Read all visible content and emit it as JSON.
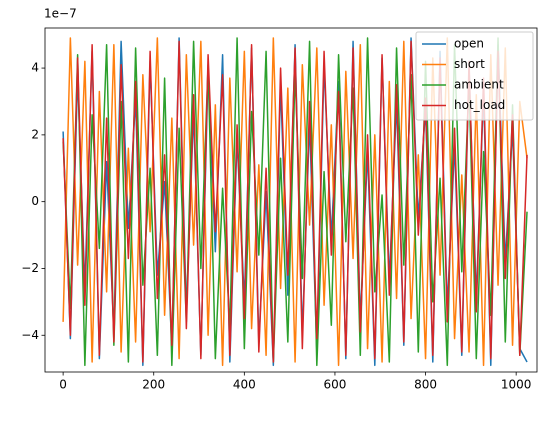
{
  "chart_data": {
    "type": "line",
    "offset_text": "1e−7",
    "x": [
      0,
      16,
      32,
      48,
      64,
      80,
      96,
      112,
      128,
      144,
      160,
      176,
      192,
      208,
      224,
      240,
      256,
      272,
      288,
      304,
      320,
      336,
      352,
      368,
      384,
      400,
      416,
      432,
      448,
      464,
      480,
      496,
      512,
      528,
      544,
      560,
      576,
      592,
      608,
      624,
      640,
      656,
      672,
      688,
      704,
      720,
      736,
      752,
      768,
      784,
      800,
      816,
      832,
      848,
      864,
      880,
      896,
      912,
      928,
      944,
      960,
      976,
      992,
      1008,
      1024
    ],
    "series": [
      {
        "name": "open",
        "color": "#1f77b4",
        "values": [
          2.1e-07,
          -4.1e-07,
          3.8e-07,
          -2.6e-07,
          4.5e-07,
          -4.7e-07,
          1.2e-07,
          -3.9e-07,
          4.8e-07,
          -8e-08,
          3.1e-07,
          -4.9e-07,
          4.2e-07,
          -2.2e-07,
          6e-08,
          -4.4e-07,
          4.9e-07,
          -3.3e-07,
          2.7e-07,
          -4.6e-07,
          3.9e-07,
          -1.5e-07,
          4.4e-07,
          -4.8e-07,
          1.9e-07,
          -3e-07,
          4.6e-07,
          -4.2e-07,
          3e-08,
          -4.9e-07,
          3.5e-07,
          -2.8e-07,
          4.7e-07,
          -4e-07,
          2.4e-07,
          -4.5e-07,
          4.1e-07,
          -1.1e-07,
          3.6e-07,
          -4.7e-07,
          4.8e-07,
          -3.6e-07,
          1.5e-07,
          -4.9e-07,
          4.3e-07,
          -2.4e-07,
          3e-07,
          -4.3e-07,
          4.9e-07,
          -5e-08,
          2.8e-07,
          -4.8e-07,
          4.5e-07,
          -3.2e-07,
          1.7e-07,
          -4.6e-07,
          4e-07,
          -2.9e-07,
          3.3e-07,
          -4.9e-07,
          4.7e-07,
          -1.8e-07,
          2.2e-07,
          -4.4e-07,
          -4.8e-07
        ]
      },
      {
        "name": "short",
        "color": "#ff7f0e",
        "values": [
          -3.6e-07,
          4.9e-07,
          -1.9e-07,
          4.2e-07,
          -4.8e-07,
          3.3e-07,
          -2.7e-07,
          4.7e-07,
          -4.5e-07,
          1.6e-07,
          -4.2e-07,
          3.8e-07,
          -9e-08,
          4.9e-07,
          -3.4e-07,
          2.5e-07,
          -4.7e-07,
          4.4e-07,
          -1.3e-07,
          4.8e-07,
          -4e-07,
          2.9e-07,
          -4.9e-07,
          3.7e-07,
          -2.1e-07,
          4.5e-07,
          -3.8e-07,
          1.1e-07,
          -4.6e-07,
          4.9e-07,
          -2.6e-07,
          3.4e-07,
          -4.8e-07,
          4.1e-07,
          -7e-08,
          4.6e-07,
          -3.1e-07,
          2.3e-07,
          -4.9e-07,
          3.9e-07,
          -1.7e-07,
          4.7e-07,
          -4.4e-07,
          2e-07,
          -4.8e-07,
          3.6e-07,
          -2.9e-07,
          4.8e-07,
          -3.5e-07,
          1.4e-07,
          -4.7e-07,
          4.3e-07,
          -2.2e-07,
          4.9e-07,
          -4.1e-07,
          8e-08,
          -4.5e-07,
          3.2e-07,
          -4.9e-07,
          4.4e-07,
          -2.5e-07,
          4.6e-07,
          -4.3e-07,
          3e-07,
          1.3e-07
        ]
      },
      {
        "name": "ambient",
        "color": "#2ca02c",
        "values": [
          1.8e-07,
          -3.2e-07,
          4.4e-07,
          -4.9e-07,
          2.6e-07,
          -1.4e-07,
          4.7e-07,
          -4.3e-07,
          3e-07,
          -4.8e-07,
          4.6e-07,
          -2.5e-07,
          1e-07,
          -4.6e-07,
          3.7e-07,
          -4.9e-07,
          2.2e-07,
          -3.6e-07,
          4.8e-07,
          -2e-07,
          4.1e-07,
          -4.7e-07,
          4e-08,
          -3.8e-07,
          4.9e-07,
          -4.4e-07,
          2.7e-07,
          -1.6e-07,
          4.5e-07,
          -4.8e-07,
          1.3e-07,
          -4.2e-07,
          3.9e-07,
          -2.3e-07,
          4.8e-07,
          -4.9e-07,
          9e-08,
          -3.7e-07,
          4.4e-07,
          -1.2e-07,
          3.4e-07,
          -4.6e-07,
          4.9e-07,
          -2.7e-07,
          2e-08,
          -4.8e-07,
          4.6e-07,
          -1.9e-07,
          3.8e-07,
          -4.5e-07,
          4.2e-07,
          -3e-07,
          7e-08,
          -4.9e-07,
          4.7e-07,
          -2.1e-07,
          3.6e-07,
          -4.7e-07,
          1.5e-07,
          -3.4e-07,
          4.9e-07,
          -4.2e-07,
          2.9e-07,
          -4.6e-07,
          -3e-08
        ]
      },
      {
        "name": "hot_load",
        "color": "#d62728",
        "values": [
          1.9e-07,
          -4e-07,
          4.3e-07,
          -3.1e-07,
          4.7e-07,
          -4.6e-07,
          2.5e-07,
          -4.2e-07,
          4.1e-07,
          -1.7e-07,
          3.6e-07,
          -4.8e-07,
          4.5e-07,
          -2.9e-07,
          1.4e-07,
          -4.3e-07,
          4.8e-07,
          -3.8e-07,
          3.2e-07,
          -4.7e-07,
          4.4e-07,
          -9e-08,
          3.8e-07,
          -4.6e-07,
          2.3e-07,
          -3.5e-07,
          4.7e-07,
          -4.5e-07,
          1e-07,
          -4.8e-07,
          4e-07,
          -2.2e-07,
          4.6e-07,
          -4.4e-07,
          3e-07,
          -4.1e-07,
          4.5e-07,
          -1.6e-07,
          3.3e-07,
          -4.6e-07,
          4.6e-07,
          -3.9e-07,
          2e-07,
          -4.7e-07,
          4.4e-07,
          -2.8e-07,
          3.5e-07,
          -4.2e-07,
          4.8e-07,
          -1e-07,
          3.1e-07,
          -4.6e-07,
          4.3e-07,
          -3.6e-07,
          2.2e-07,
          -4.5e-07,
          4.2e-07,
          -3.3e-07,
          3.7e-07,
          -4.7e-07,
          4.5e-07,
          -2.3e-07,
          2.6e-07,
          -4.6e-07,
          1.4e-07
        ]
      }
    ],
    "xlim": [
      -40,
      1046
    ],
    "xticks": [
      0,
      200,
      400,
      600,
      800,
      1000
    ],
    "ylim": [
      -5.1e-07,
      5.2e-07
    ],
    "yticks": [
      {
        "value": -4e-07,
        "label": "−4"
      },
      {
        "value": -2e-07,
        "label": "−2"
      },
      0,
      {
        "value": 2e-07,
        "label": "2"
      },
      {
        "value": 4e-07,
        "label": "4"
      }
    ],
    "legend": "upper right"
  }
}
